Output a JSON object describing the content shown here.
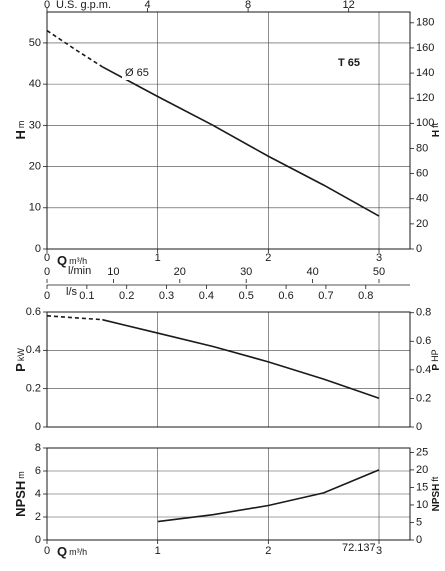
{
  "chart_data": [
    {
      "type": "line",
      "title": "T 65",
      "annotation": "Ø 65",
      "ylabel": "H",
      "yunit": "m",
      "y2label": "H",
      "y2unit": "ft",
      "xlim": [
        0,
        3.28
      ],
      "xticks": [
        0,
        1,
        2,
        3
      ],
      "ylim": [
        0,
        57.5
      ],
      "yticks": [
        0,
        10,
        20,
        30,
        40,
        50
      ],
      "y2lim": [
        0,
        188.6
      ],
      "y2ticks": [
        0,
        20,
        40,
        60,
        80,
        100,
        120,
        140,
        160,
        180
      ],
      "grid": true,
      "top_axis": {
        "label": "U.S. g.p.m.",
        "xlim": [
          0,
          14.44
        ],
        "xticks": [
          0,
          4,
          8,
          12
        ]
      },
      "bottom_axes": [
        {
          "label": "Q",
          "unit": "m³/h",
          "xlim": [
            0,
            3.28
          ],
          "xticks": [
            0,
            1,
            2,
            3
          ]
        },
        {
          "label": "l/min",
          "xlim": [
            0,
            54.67
          ],
          "xticks": [
            0,
            10,
            20,
            30,
            40,
            50
          ]
        },
        {
          "label": "l/s",
          "xlim": [
            0,
            0.911
          ],
          "xticks": [
            0,
            0.1,
            0.2,
            0.3,
            0.4,
            0.5,
            0.6,
            0.7,
            0.8
          ]
        }
      ],
      "series": [
        {
          "color": "#1a1a1a",
          "dash": true,
          "x": [
            0,
            0.25,
            0.5
          ],
          "values": [
            53,
            48.5,
            44.2
          ]
        },
        {
          "color": "#1a1a1a",
          "dash": false,
          "x": [
            0.5,
            1,
            1.5,
            2,
            2.5,
            3
          ],
          "values": [
            44.2,
            37,
            30,
            22.5,
            15.5,
            8
          ]
        }
      ]
    },
    {
      "type": "line",
      "ylabel": "P",
      "yunit": "kW",
      "y2label": "P",
      "y2unit": "HP",
      "xlim": [
        0,
        3.28
      ],
      "xticks": [
        0,
        1,
        2,
        3
      ],
      "ylim": [
        0,
        0.6
      ],
      "yticks": [
        0,
        0.2,
        0.4,
        0.6
      ],
      "y2lim": [
        0,
        0.805
      ],
      "y2ticks": [
        0,
        0.2,
        0.4,
        0.6,
        0.8
      ],
      "grid": true,
      "series": [
        {
          "color": "#1a1a1a",
          "dash": true,
          "x": [
            0,
            0.25,
            0.5
          ],
          "values": [
            0.58,
            0.57,
            0.56
          ]
        },
        {
          "color": "#1a1a1a",
          "dash": false,
          "x": [
            0.5,
            1,
            1.5,
            2,
            2.5,
            3
          ],
          "values": [
            0.56,
            0.49,
            0.42,
            0.34,
            0.25,
            0.15
          ]
        }
      ]
    },
    {
      "type": "line",
      "annotation": "72.137",
      "ylabel": "NPSH",
      "yunit": "m",
      "y2label": "NPSH",
      "y2unit": "ft",
      "xlabel": "Q",
      "xunit": "m³/h",
      "xlim": [
        0,
        3.28
      ],
      "xticks": [
        0,
        1,
        2,
        3
      ],
      "ylim": [
        0,
        8
      ],
      "yticks": [
        0,
        2,
        4,
        6,
        8
      ],
      "y2lim": [
        0,
        26.25
      ],
      "y2ticks": [
        0,
        5,
        10,
        15,
        20,
        25
      ],
      "grid": true,
      "series": [
        {
          "color": "#1a1a1a",
          "dash": false,
          "x": [
            1,
            1.5,
            2,
            2.5,
            3
          ],
          "values": [
            1.6,
            2.2,
            3.0,
            4.1,
            6.1
          ]
        }
      ]
    }
  ]
}
